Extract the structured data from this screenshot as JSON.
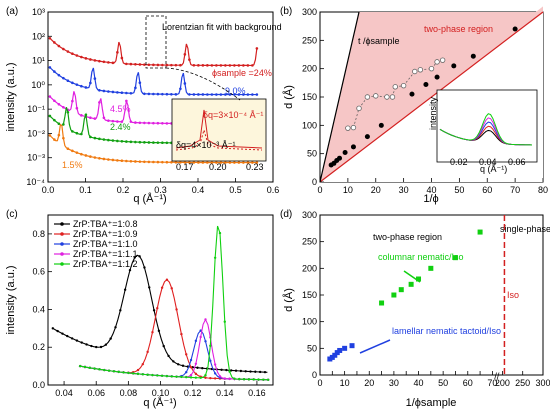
{
  "chart_data": [
    {
      "panel": "(a)",
      "type": "line",
      "xlabel": "q (Å⁻¹)",
      "ylabel": "intensity (a.u.)",
      "xlim": [
        0,
        0.6
      ],
      "ylim_log": [
        -4,
        3
      ],
      "x_ticks": [
        "0.0",
        "0.1",
        "0.2",
        "0.3",
        "0.4",
        "0.5",
        "0.6"
      ],
      "y_ticks": [
        "10⁻⁴",
        "10⁻³",
        "10⁻²",
        "10⁻¹",
        "10⁰",
        "10¹",
        "10²",
        "10³"
      ],
      "series": [
        {
          "name": "ϕsample=24%",
          "color": "#d32020",
          "peaks": [
            0.19,
            0.37,
            0.56
          ],
          "base_decade": 0.8
        },
        {
          "name": "9.0%",
          "color": "#2040e0",
          "peaks": [
            0.12,
            0.24,
            0.36
          ],
          "base_decade": -0.4
        },
        {
          "name": "4.5%",
          "color": "#e020e0",
          "peaks": [
            0.07,
            0.14,
            0.21
          ],
          "base_decade": -1.6
        },
        {
          "name": "2.4%",
          "color": "#10a010",
          "peaks": [
            0.05,
            0.1
          ],
          "base_decade": -2.4
        },
        {
          "name": "1.5%",
          "color": "#f07a10",
          "peaks": [
            0.035
          ],
          "base_decade": -3.2
        }
      ],
      "annotations": {
        "fit": "Lorentzian fit with background",
        "phi_label": "ϕsample =24%",
        "label_9": "9.0%",
        "label_45": "4.5%",
        "label_24": "2.4%",
        "label_15": "1.5%"
      },
      "inset": {
        "xlim": [
          0.17,
          0.23
        ],
        "x_ticks": [
          "0.17",
          "0.20",
          "0.23"
        ],
        "dq_top": "δq=3×10⁻⁴ Å⁻¹",
        "dq_bottom": "δq=4×10⁻³ Å⁻¹"
      }
    },
    {
      "panel": "(b)",
      "type": "scatter",
      "xlabel": "1/ϕ",
      "ylabel": "d (Å)",
      "xlim": [
        0,
        80
      ],
      "ylim": [
        0,
        300
      ],
      "x_ticks": [
        "0",
        "10",
        "20",
        "30",
        "40",
        "50",
        "60",
        "70",
        "80"
      ],
      "y_ticks": [
        "0",
        "50",
        "100",
        "150",
        "200",
        "250",
        "300"
      ],
      "region_label": "two-phase region",
      "line_label": "t /ϕsample",
      "filled_points": [
        [
          4,
          30
        ],
        [
          5,
          33
        ],
        [
          6,
          38
        ],
        [
          7,
          42
        ],
        [
          9,
          52
        ],
        [
          12,
          62
        ],
        [
          17,
          80
        ],
        [
          22,
          100
        ],
        [
          33,
          155
        ],
        [
          38,
          172
        ],
        [
          42,
          185
        ],
        [
          48,
          205
        ],
        [
          55,
          222
        ],
        [
          70,
          270
        ]
      ],
      "open_points": [
        [
          10,
          95
        ],
        [
          12,
          96
        ],
        [
          14,
          130
        ],
        [
          17,
          150
        ],
        [
          20,
          152
        ],
        [
          24,
          150
        ],
        [
          26,
          150
        ],
        [
          27,
          168
        ],
        [
          30,
          170
        ],
        [
          34,
          195
        ],
        [
          36,
          198
        ],
        [
          40,
          200
        ],
        [
          42,
          212
        ],
        [
          44,
          215
        ]
      ],
      "inset": {
        "xlabel": "q (Å⁻¹)",
        "ylabel": "intensity",
        "x_ticks": [
          "0.02",
          "0.04",
          "0.06"
        ]
      }
    },
    {
      "panel": "(c)",
      "type": "line",
      "xlabel": "q (Å⁻¹)",
      "ylabel": "intensity (a.u.)",
      "xlim": [
        0.03,
        0.17
      ],
      "ylim": [
        0,
        0.9
      ],
      "x_ticks": [
        "0.04",
        "0.06",
        "0.08",
        "0.10",
        "0.12",
        "0.14",
        "0.16"
      ],
      "y_ticks": [
        "0.0",
        "0.2",
        "0.4",
        "0.6",
        "0.8"
      ],
      "series": [
        {
          "name": "ZrP:TBA⁺=1:0.8",
          "color": "#000000",
          "peak": 0.086,
          "height": 0.55,
          "width": 0.012
        },
        {
          "name": "ZrP:TBA⁺=1:0.9",
          "color": "#e02020",
          "peak": 0.104,
          "height": 0.51,
          "width": 0.01
        },
        {
          "name": "ZrP:TBA⁺=1:1.0",
          "color": "#2040e0",
          "peak": 0.125,
          "height": 0.25,
          "width": 0.006
        },
        {
          "name": "ZrP:TBA⁺=1:1.1",
          "color": "#e020e0",
          "peak": 0.128,
          "height": 0.31,
          "width": 0.005
        },
        {
          "name": "ZrP:TBA⁺=1:1.2",
          "color": "#10d010",
          "peak": 0.136,
          "height": 0.82,
          "width": 0.004
        }
      ]
    },
    {
      "panel": "(d)",
      "type": "scatter",
      "xlabel": "1/ϕsample",
      "ylabel": "d (Å)",
      "xlim": [
        0,
        300
      ],
      "ylim": [
        0,
        300
      ],
      "x_ticks": [
        "0",
        "5",
        "10",
        "15",
        "20",
        "25",
        "30",
        "35",
        "40",
        "45",
        "50",
        "55",
        "60",
        "65",
        "70",
        "200",
        "250",
        "300"
      ],
      "y_ticks": [
        "0",
        "50",
        "100",
        "150",
        "200",
        "250",
        "300"
      ],
      "two_phase_label": "two-phase region",
      "single_phase_label": "single-phase region",
      "iso_label": "Iso",
      "columnar_label": "columnar nematic/Iso",
      "lamellar_label": "lamellar nematic tactoid/Iso",
      "green_points": [
        [
          25,
          135
        ],
        [
          30,
          150
        ],
        [
          33,
          160
        ],
        [
          37,
          170
        ],
        [
          40,
          180
        ],
        [
          45,
          200
        ],
        [
          55,
          220
        ],
        [
          65,
          268
        ]
      ],
      "blue_points": [
        [
          4,
          30
        ],
        [
          5,
          33
        ],
        [
          6,
          37
        ],
        [
          7,
          42
        ],
        [
          8,
          46
        ],
        [
          10,
          50
        ],
        [
          13,
          55
        ]
      ],
      "iso_x": 205
    }
  ]
}
